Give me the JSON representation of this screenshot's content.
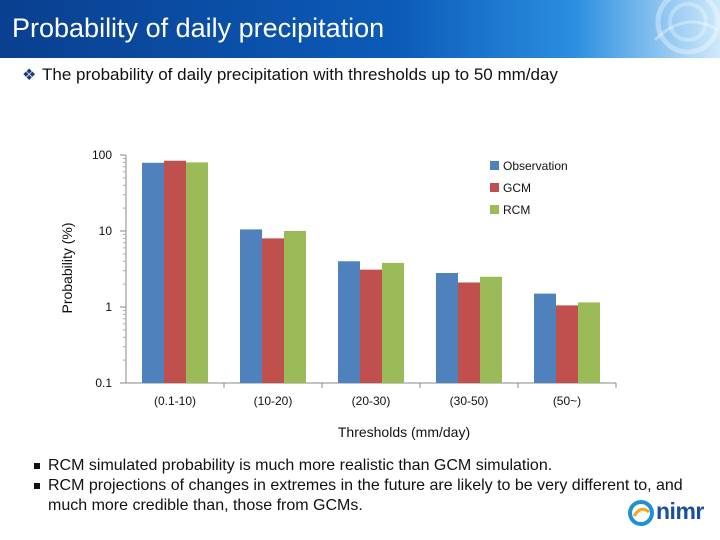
{
  "header": {
    "title": "Probability of daily precipitation"
  },
  "subtitle": {
    "bullet": "❖",
    "text": "The probability of daily precipitation with thresholds up to 50 mm/day"
  },
  "colors": {
    "observation": "#4f81bd",
    "gcm": "#c0504d",
    "rcm": "#9bbb59"
  },
  "chart_data": {
    "type": "bar",
    "xlabel": "Thresholds (mm/day)",
    "ylabel": "Probability (%)",
    "yscale": "log",
    "ylim": [
      0.1,
      100
    ],
    "yticks": [
      "100",
      "10",
      "1",
      "0.1"
    ],
    "categories": [
      "(0.1-10)",
      "(10-20)",
      "(20-30)",
      "(30-50)",
      "(50~)"
    ],
    "series": [
      {
        "name": "Observation",
        "values": [
          79,
          10.5,
          4.0,
          2.8,
          1.5
        ]
      },
      {
        "name": "GCM",
        "values": [
          84,
          8.0,
          3.1,
          2.1,
          1.05
        ]
      },
      {
        "name": "RCM",
        "values": [
          80,
          10.0,
          3.8,
          2.5,
          1.15
        ]
      }
    ],
    "legend_position": "right"
  },
  "notes": [
    "RCM simulated probability is much more realistic than GCM simulation.",
    "RCM projections of changes in extremes in the future are likely to be very different to, and much more credible than, those from GCMs."
  ],
  "logo": {
    "text": "nimr"
  }
}
